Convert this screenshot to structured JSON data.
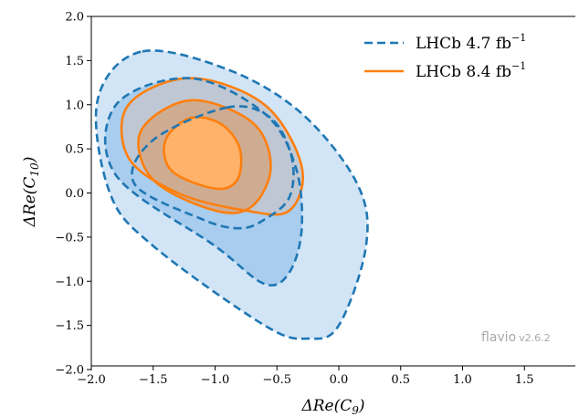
{
  "chart_data": {
    "type": "contour",
    "xlabel": "ΔRe(C9)",
    "ylabel": "ΔRe(C10)",
    "xlim": [
      -2.0,
      2.0
    ],
    "ylim": [
      -2.0,
      2.0
    ],
    "x_ticks": [
      "−2.0",
      "−1.5",
      "−1.0",
      "−0.5",
      "0.0",
      "0.5",
      "1.0",
      "1.5",
      "2."
    ],
    "y_ticks": [
      "2.0",
      "1.5",
      "1.0",
      "0.5",
      "0.0",
      "−0.5",
      "−1.0",
      "−1.5",
      "−2.0"
    ],
    "x_tick_values": [
      -2.0,
      -1.5,
      -1.0,
      -0.5,
      0.0,
      0.5,
      1.0,
      1.5,
      2.0
    ],
    "y_tick_values": [
      2.0,
      1.5,
      1.0,
      0.5,
      0.0,
      -0.5,
      -1.0,
      -1.5,
      -2.0
    ],
    "grid": false,
    "legend_position": "top-right",
    "series": [
      {
        "name": "LHCb 4.7 fb⁻¹",
        "label_main": "LHCb 4.7 fb",
        "label_sup": "−1",
        "color": "#1f77b4",
        "fill_outer": "#d2e5f6",
        "fill_inner": "#a8cdee",
        "line_style": "dashed",
        "contours": [
          {
            "level": "1σ",
            "points": [
              [
                -0.9,
                0.97
              ],
              [
                -1.5,
                0.6
              ],
              [
                -1.65,
                0.1
              ],
              [
                -1.1,
                -0.3
              ],
              [
                -0.8,
                -0.4
              ],
              [
                -0.6,
                -0.3
              ],
              [
                -0.4,
                -0.05
              ],
              [
                -0.38,
                0.4
              ],
              [
                -0.55,
                0.85
              ]
            ]
          },
          {
            "level": "2σ",
            "points": [
              [
                -1.2,
                1.3
              ],
              [
                -1.8,
                1.0
              ],
              [
                -1.8,
                0.2
              ],
              [
                -1.0,
                -0.6
              ],
              [
                -0.6,
                -1.03
              ],
              [
                -0.4,
                -0.9
              ],
              [
                -0.3,
                -0.4
              ],
              [
                -0.35,
                0.3
              ],
              [
                -0.6,
                0.9
              ]
            ]
          },
          {
            "level": "3σ",
            "points": [
              [
                -1.6,
                1.6
              ],
              [
                -1.95,
                1.05
              ],
              [
                -1.85,
                0.0
              ],
              [
                -1.5,
                -0.6
              ],
              [
                -0.6,
                -1.5
              ],
              [
                -0.25,
                -1.65
              ],
              [
                0.0,
                -1.5
              ],
              [
                0.22,
                -0.6
              ],
              [
                0.15,
                0.1
              ],
              [
                -0.3,
                0.9
              ],
              [
                -0.9,
                1.4
              ]
            ]
          }
        ]
      },
      {
        "name": "LHCb 8.4 fb⁻¹",
        "label_main": "LHCb 8.4 fb",
        "label_sup": "−1",
        "color": "#ff7f0e",
        "fill_inner": "#ffb26a",
        "line_style": "solid",
        "contours": [
          {
            "level": "1σ",
            "points": [
              [
                -1.2,
                0.85
              ],
              [
                -1.4,
                0.6
              ],
              [
                -1.35,
                0.25
              ],
              [
                -1.0,
                0.05
              ],
              [
                -0.82,
                0.15
              ],
              [
                -0.8,
                0.5
              ],
              [
                -0.95,
                0.78
              ]
            ]
          },
          {
            "level": "2σ",
            "points": [
              [
                -1.2,
                1.05
              ],
              [
                -1.6,
                0.7
              ],
              [
                -1.5,
                0.15
              ],
              [
                -1.0,
                -0.2
              ],
              [
                -0.7,
                -0.15
              ],
              [
                -0.55,
                0.3
              ],
              [
                -0.7,
                0.8
              ]
            ]
          },
          {
            "level": "3σ",
            "points": [
              [
                -1.2,
                1.3
              ],
              [
                -1.7,
                1.0
              ],
              [
                -1.7,
                0.4
              ],
              [
                -1.3,
                0.0
              ],
              [
                -0.75,
                -0.2
              ],
              [
                -0.4,
                -0.2
              ],
              [
                -0.3,
                0.3
              ],
              [
                -0.6,
                1.0
              ]
            ]
          }
        ]
      }
    ]
  },
  "watermark": {
    "name": "flavio",
    "version": "v2.6.2"
  }
}
